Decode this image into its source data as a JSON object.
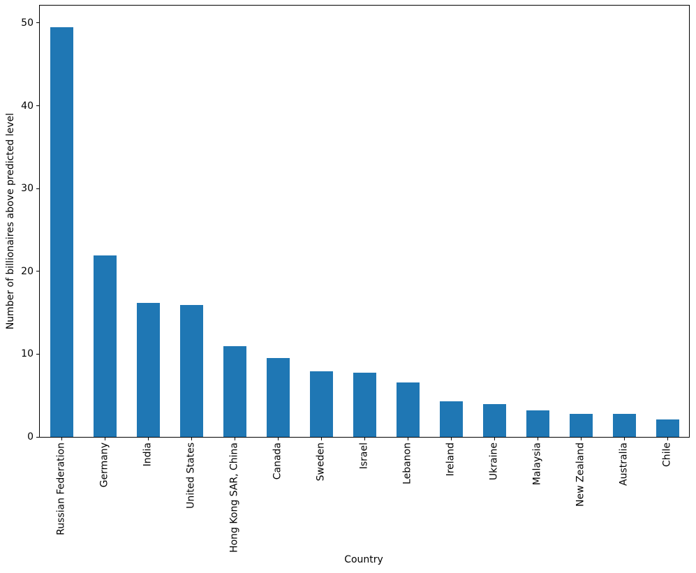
{
  "figure": {
    "background": "#ffffff"
  },
  "chart_data": {
    "type": "bar",
    "title": "",
    "xlabel": "Country",
    "ylabel": "Number of billionaires above predicted level",
    "categories": [
      "Russian Federation",
      "Germany",
      "India",
      "United States",
      "Hong Kong SAR, China",
      "Canada",
      "Sweden",
      "Israel",
      "Lebanon",
      "Ireland",
      "Ukraine",
      "Malaysia",
      "New Zealand",
      "Australia",
      "Chile"
    ],
    "values": [
      49.5,
      21.9,
      16.2,
      15.9,
      11.0,
      9.5,
      7.9,
      7.8,
      6.6,
      4.3,
      4.0,
      3.2,
      2.8,
      2.8,
      2.1
    ],
    "bar_color": "#1f77b4",
    "yticks": [
      0,
      10,
      20,
      30,
      40,
      50
    ],
    "ylim": [
      0,
      52.1
    ],
    "xtick_rotation": 90,
    "grid": false,
    "legend": null
  }
}
